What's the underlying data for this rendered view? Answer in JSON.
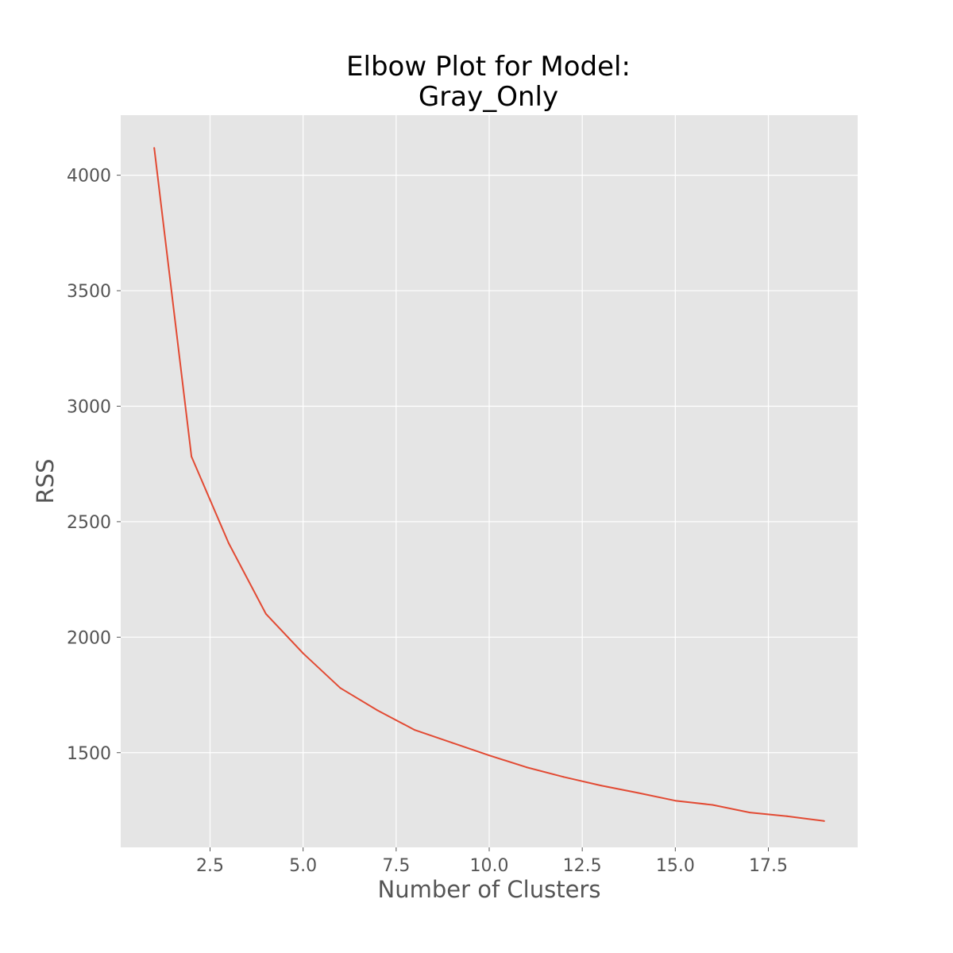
{
  "chart_data": {
    "type": "line",
    "title_lines": [
      "Elbow Plot for Model:",
      "Gray_Only"
    ],
    "xlabel": "Number of Clusters",
    "ylabel": "RSS",
    "xlim": [
      0.1,
      19.9
    ],
    "ylim": [
      1090,
      4260
    ],
    "x_ticks": [
      2.5,
      5.0,
      7.5,
      10.0,
      12.5,
      15.0,
      17.5
    ],
    "x_tick_labels": [
      "2.5",
      "5.0",
      "7.5",
      "10.0",
      "12.5",
      "15.0",
      "17.5"
    ],
    "y_ticks": [
      1500,
      2000,
      2500,
      3000,
      3500,
      4000
    ],
    "y_tick_labels": [
      "1500",
      "2000",
      "2500",
      "3000",
      "3500",
      "4000"
    ],
    "grid": true,
    "colors": {
      "background": "#e5e5e5",
      "grid": "#ffffff",
      "line": "#e24a33",
      "tick_text": "#555555"
    },
    "series": [
      {
        "x": [
          1,
          2,
          3,
          4,
          5,
          6,
          7,
          8,
          9,
          10,
          11,
          12,
          13,
          14,
          15,
          16,
          17,
          18,
          19
        ],
        "values": [
          4118,
          2782,
          2407,
          2101,
          1930,
          1780,
          1683,
          1598,
          1543,
          1488,
          1437,
          1395,
          1358,
          1326,
          1292,
          1274,
          1241,
          1225,
          1204
        ]
      }
    ]
  }
}
